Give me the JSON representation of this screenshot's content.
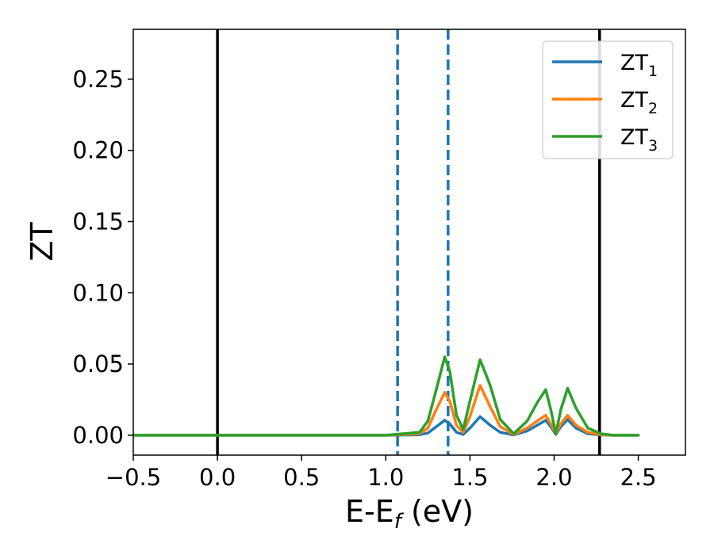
{
  "chart_data": {
    "type": "line",
    "xlabel": "E-E",
    "xlabel_subscript": "f",
    "xlabel_unit": " (eV)",
    "ylabel": "ZT",
    "xlim": [
      -0.5,
      2.78
    ],
    "ylim": [
      -0.014,
      0.285
    ],
    "x_ticks": [
      -0.5,
      0.0,
      0.5,
      1.0,
      1.5,
      2.0,
      2.5
    ],
    "x_tick_labels": [
      "−0.5",
      "0.0",
      "0.5",
      "1.0",
      "1.5",
      "2.0",
      "2.5"
    ],
    "y_ticks": [
      0.0,
      0.05,
      0.1,
      0.15,
      0.2,
      0.25
    ],
    "y_tick_labels": [
      "0.00",
      "0.05",
      "0.10",
      "0.15",
      "0.20",
      "0.25"
    ],
    "grid": false,
    "legend_position": "top-right",
    "vertical_lines": [
      {
        "x": 0.0,
        "style": "solid",
        "color": "#000000"
      },
      {
        "x": 2.27,
        "style": "solid",
        "color": "#000000"
      },
      {
        "x": 1.07,
        "style": "dashed",
        "color": "#1f77b4"
      },
      {
        "x": 1.37,
        "style": "dashed",
        "color": "#1f77b4"
      }
    ],
    "series": [
      {
        "name": "ZT",
        "subscript": "1",
        "color": "#1f77b4",
        "points": [
          [
            -0.5,
            0
          ],
          [
            1.0,
            0
          ],
          [
            1.2,
            0.0003
          ],
          [
            1.25,
            0.0015
          ],
          [
            1.3,
            0.006
          ],
          [
            1.35,
            0.0105
          ],
          [
            1.38,
            0.008
          ],
          [
            1.42,
            0.002
          ],
          [
            1.46,
            0.0005
          ],
          [
            1.5,
            0.005
          ],
          [
            1.56,
            0.013
          ],
          [
            1.62,
            0.007
          ],
          [
            1.68,
            0.002
          ],
          [
            1.76,
            0.0002
          ],
          [
            1.84,
            0.003
          ],
          [
            1.9,
            0.007
          ],
          [
            1.95,
            0.0105
          ],
          [
            1.98,
            0.006
          ],
          [
            2.01,
            0.0005
          ],
          [
            2.04,
            0.006
          ],
          [
            2.08,
            0.011
          ],
          [
            2.13,
            0.005
          ],
          [
            2.2,
            0.001
          ],
          [
            2.28,
            0.0002
          ],
          [
            2.35,
            0
          ],
          [
            2.5,
            0
          ]
        ]
      },
      {
        "name": "ZT",
        "subscript": "2",
        "color": "#ff7f0e",
        "points": [
          [
            -0.5,
            0
          ],
          [
            1.0,
            0
          ],
          [
            1.2,
            0.001
          ],
          [
            1.25,
            0.005
          ],
          [
            1.3,
            0.018
          ],
          [
            1.35,
            0.03
          ],
          [
            1.38,
            0.024
          ],
          [
            1.42,
            0.007
          ],
          [
            1.46,
            0.002
          ],
          [
            1.5,
            0.013
          ],
          [
            1.56,
            0.035
          ],
          [
            1.62,
            0.02
          ],
          [
            1.68,
            0.006
          ],
          [
            1.76,
            0.0005
          ],
          [
            1.84,
            0.005
          ],
          [
            1.9,
            0.01
          ],
          [
            1.95,
            0.014
          ],
          [
            1.98,
            0.008
          ],
          [
            2.01,
            0.001
          ],
          [
            2.04,
            0.008
          ],
          [
            2.08,
            0.014
          ],
          [
            2.13,
            0.007
          ],
          [
            2.2,
            0.002
          ],
          [
            2.28,
            0.0004
          ],
          [
            2.35,
            0
          ],
          [
            2.5,
            0
          ]
        ]
      },
      {
        "name": "ZT",
        "subscript": "3",
        "color": "#2ca02c",
        "points": [
          [
            -0.5,
            0
          ],
          [
            1.0,
            0
          ],
          [
            1.2,
            0.002
          ],
          [
            1.25,
            0.01
          ],
          [
            1.3,
            0.032
          ],
          [
            1.35,
            0.055
          ],
          [
            1.38,
            0.045
          ],
          [
            1.42,
            0.014
          ],
          [
            1.46,
            0.004
          ],
          [
            1.5,
            0.024
          ],
          [
            1.56,
            0.053
          ],
          [
            1.62,
            0.035
          ],
          [
            1.68,
            0.011
          ],
          [
            1.76,
            0.001
          ],
          [
            1.84,
            0.01
          ],
          [
            1.9,
            0.023
          ],
          [
            1.95,
            0.032
          ],
          [
            1.98,
            0.018
          ],
          [
            2.01,
            0.001
          ],
          [
            2.04,
            0.018
          ],
          [
            2.08,
            0.033
          ],
          [
            2.13,
            0.019
          ],
          [
            2.2,
            0.005
          ],
          [
            2.28,
            0.001
          ],
          [
            2.35,
            0
          ],
          [
            2.5,
            0
          ]
        ]
      }
    ]
  }
}
